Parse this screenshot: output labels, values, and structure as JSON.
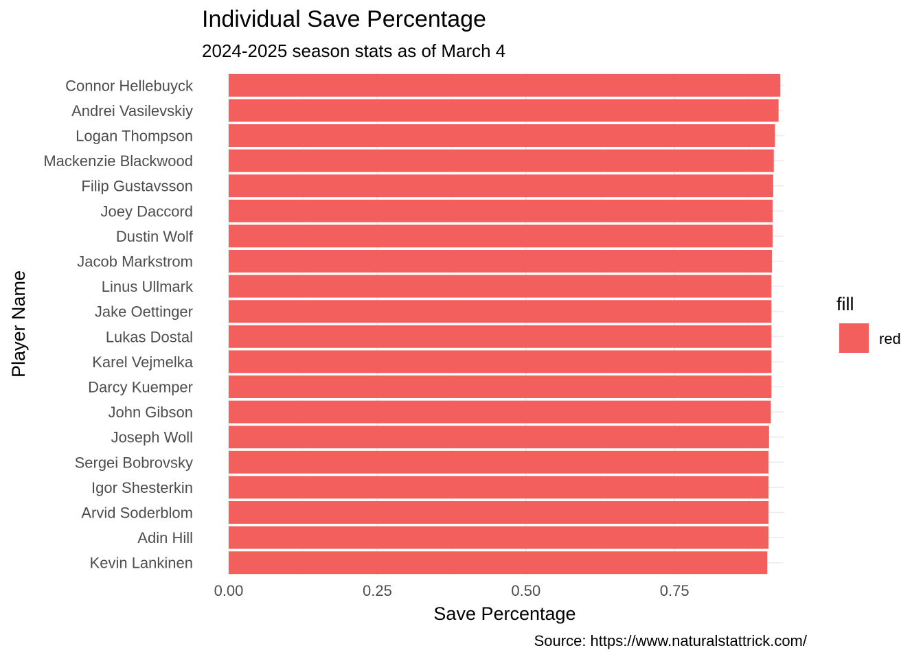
{
  "chart_data": {
    "type": "bar",
    "orientation": "horizontal",
    "title": "Individual Save Percentage",
    "subtitle": "2024-2025 season stats as of March 4",
    "xlabel": "Save Percentage",
    "ylabel": "Player Name",
    "caption": "Source: https://www.naturalstattrick.com/",
    "xlim": [
      0,
      0.93
    ],
    "x_ticks": [
      0,
      0.25,
      0.5,
      0.75
    ],
    "x_tick_labels": [
      "0.00",
      "0.25",
      "0.50",
      "0.75"
    ],
    "grid": true,
    "legend": {
      "title": "fill",
      "position": "right",
      "items": [
        {
          "label": "red",
          "color": "#F8766D"
        }
      ]
    },
    "bar_color": "#F25F5C",
    "categories": [
      "Connor Hellebuyck",
      "Andrei Vasilevskiy",
      "Logan Thompson",
      "Mackenzie Blackwood",
      "Filip Gustavsson",
      "Joey Daccord",
      "Dustin Wolf",
      "Jacob Markstrom",
      "Linus Ullmark",
      "Jake Oettinger",
      "Lukas Dostal",
      "Karel Vejmelka",
      "Darcy Kuemper",
      "John Gibson",
      "Joseph Woll",
      "Sergei Bobrovsky",
      "Igor Shesterkin",
      "Arvid Soderblom",
      "Adin Hill",
      "Kevin Lankinen"
    ],
    "values": [
      0.928,
      0.925,
      0.919,
      0.917,
      0.916,
      0.915,
      0.915,
      0.914,
      0.913,
      0.913,
      0.913,
      0.913,
      0.913,
      0.912,
      0.909,
      0.908,
      0.908,
      0.908,
      0.908,
      0.906
    ]
  }
}
